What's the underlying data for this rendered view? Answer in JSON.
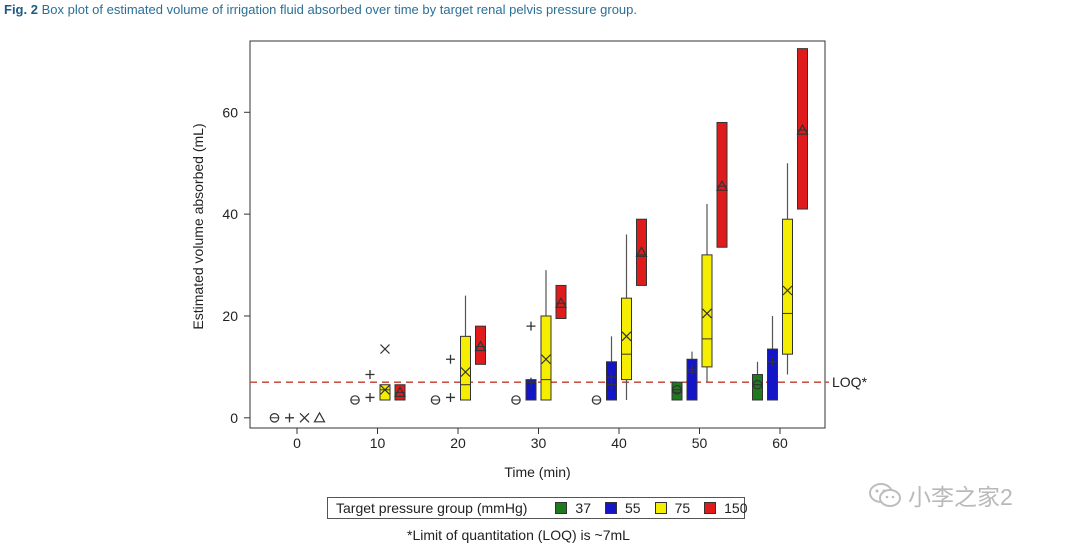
{
  "caption": {
    "fig_label": "Fig. 2",
    "text": "Box plot of estimated volume of irrigation fluid absorbed over time by target renal pelvis pressure group."
  },
  "chart_data": {
    "type": "box",
    "xlabel": "Time (min)",
    "ylabel": "Estimated volume absorbed (mL)",
    "x_ticks": [
      "0",
      "10",
      "20",
      "30",
      "40",
      "50",
      "60"
    ],
    "y_ticks": [
      "0",
      "20",
      "40",
      "60"
    ],
    "ylim": [
      -2,
      74
    ],
    "grid": false,
    "reference_line": {
      "value": 7,
      "label": "LOQ*",
      "color": "#c0392b",
      "style": "dashed"
    },
    "legend": {
      "title": "Target pressure group (mmHg)",
      "placement": "bottom",
      "entries": [
        {
          "label": "37",
          "color": "#1f7a1f"
        },
        {
          "label": "55",
          "color": "#1515c8"
        },
        {
          "label": "75",
          "color": "#f5ee00"
        },
        {
          "label": "150",
          "color": "#e01b1b"
        }
      ]
    },
    "series": [
      {
        "name": "37",
        "color": "#1f7a1f",
        "marker": "circle",
        "boxes": [
          {
            "time": 0,
            "single": 0
          },
          {
            "time": 50,
            "q1": 3.5,
            "median": 5,
            "q3": 7,
            "mean": 5.5
          },
          {
            "time": 60,
            "q1": 3.5,
            "median": 6.5,
            "q3": 8.5,
            "whisker_high": 11,
            "mean": 6.5
          }
        ],
        "points": [
          {
            "time": 10,
            "value": 3.5
          },
          {
            "time": 20,
            "value": 3.5
          },
          {
            "time": 30,
            "value": 3.5
          },
          {
            "time": 40,
            "value": 3.5
          }
        ]
      },
      {
        "name": "55",
        "color": "#1515c8",
        "marker": "plus",
        "boxes": [
          {
            "time": 0,
            "single": 0
          },
          {
            "time": 30,
            "q1": 3.5,
            "median": 7,
            "q3": 7.5,
            "mean": 7
          },
          {
            "time": 40,
            "q1": 3.5,
            "median": 8,
            "q3": 11,
            "whisker_high": 16,
            "mean": 8
          },
          {
            "time": 50,
            "q1": 3.5,
            "median": 9,
            "q3": 11.5,
            "whisker_high": 13,
            "mean": 9.5
          },
          {
            "time": 60,
            "q1": 3.5,
            "median": 11,
            "q3": 13.5,
            "whisker_high": 20,
            "mean": 11
          }
        ],
        "points": [
          {
            "time": 10,
            "value": 4
          },
          {
            "time": 10,
            "value": 8.5,
            "outlier": true
          },
          {
            "time": 20,
            "value": 4
          },
          {
            "time": 20,
            "value": 11.5,
            "outlier": true
          },
          {
            "time": 30,
            "value": 18,
            "outlier": true
          },
          {
            "time": 40,
            "value": 6.5
          }
        ]
      },
      {
        "name": "75",
        "color": "#f5ee00",
        "marker": "x",
        "boxes": [
          {
            "time": 0,
            "single": 0
          },
          {
            "time": 10,
            "q1": 3.5,
            "median": 5.5,
            "q3": 6.5,
            "mean": 5.5
          },
          {
            "time": 20,
            "q1": 3.5,
            "median": 6.5,
            "q3": 16,
            "whisker_high": 24,
            "mean": 9
          },
          {
            "time": 30,
            "q1": 3.5,
            "median": 7.5,
            "q3": 20,
            "whisker_high": 29,
            "mean": 11.5
          },
          {
            "time": 40,
            "q1": 7.5,
            "median": 12.5,
            "q3": 23.5,
            "whisker_low": 3.5,
            "whisker_high": 36,
            "mean": 16
          },
          {
            "time": 50,
            "q1": 10,
            "median": 15.5,
            "q3": 32,
            "whisker_low": 7,
            "whisker_high": 42,
            "mean": 20.5
          },
          {
            "time": 60,
            "q1": 12.5,
            "median": 20.5,
            "q3": 39,
            "whisker_low": 8.5,
            "whisker_high": 50,
            "mean": 25
          }
        ],
        "points": [
          {
            "time": 10,
            "value": 13.5,
            "outlier": true
          }
        ]
      },
      {
        "name": "150",
        "color": "#e01b1b",
        "marker": "triangle",
        "boxes": [
          {
            "time": 0,
            "single": 0
          },
          {
            "time": 10,
            "q1": 3.5,
            "median": 5,
            "q3": 6.5,
            "mean": 5
          },
          {
            "time": 20,
            "q1": 10.5,
            "median": 14,
            "q3": 18,
            "mean": 14
          },
          {
            "time": 30,
            "q1": 19.5,
            "median": 22.5,
            "q3": 26,
            "mean": 22.5
          },
          {
            "time": 40,
            "q1": 26,
            "median": 32,
            "q3": 39,
            "mean": 32.5
          },
          {
            "time": 50,
            "q1": 33.5,
            "median": 45.5,
            "q3": 58,
            "mean": 45.5
          },
          {
            "time": 60,
            "q1": 41,
            "median": 56.5,
            "q3": 72.5,
            "mean": 56.5
          }
        ],
        "points": []
      }
    ]
  },
  "footnote": "*Limit of quantitation (LOQ) is ~7mL",
  "watermark": "小李之家2"
}
